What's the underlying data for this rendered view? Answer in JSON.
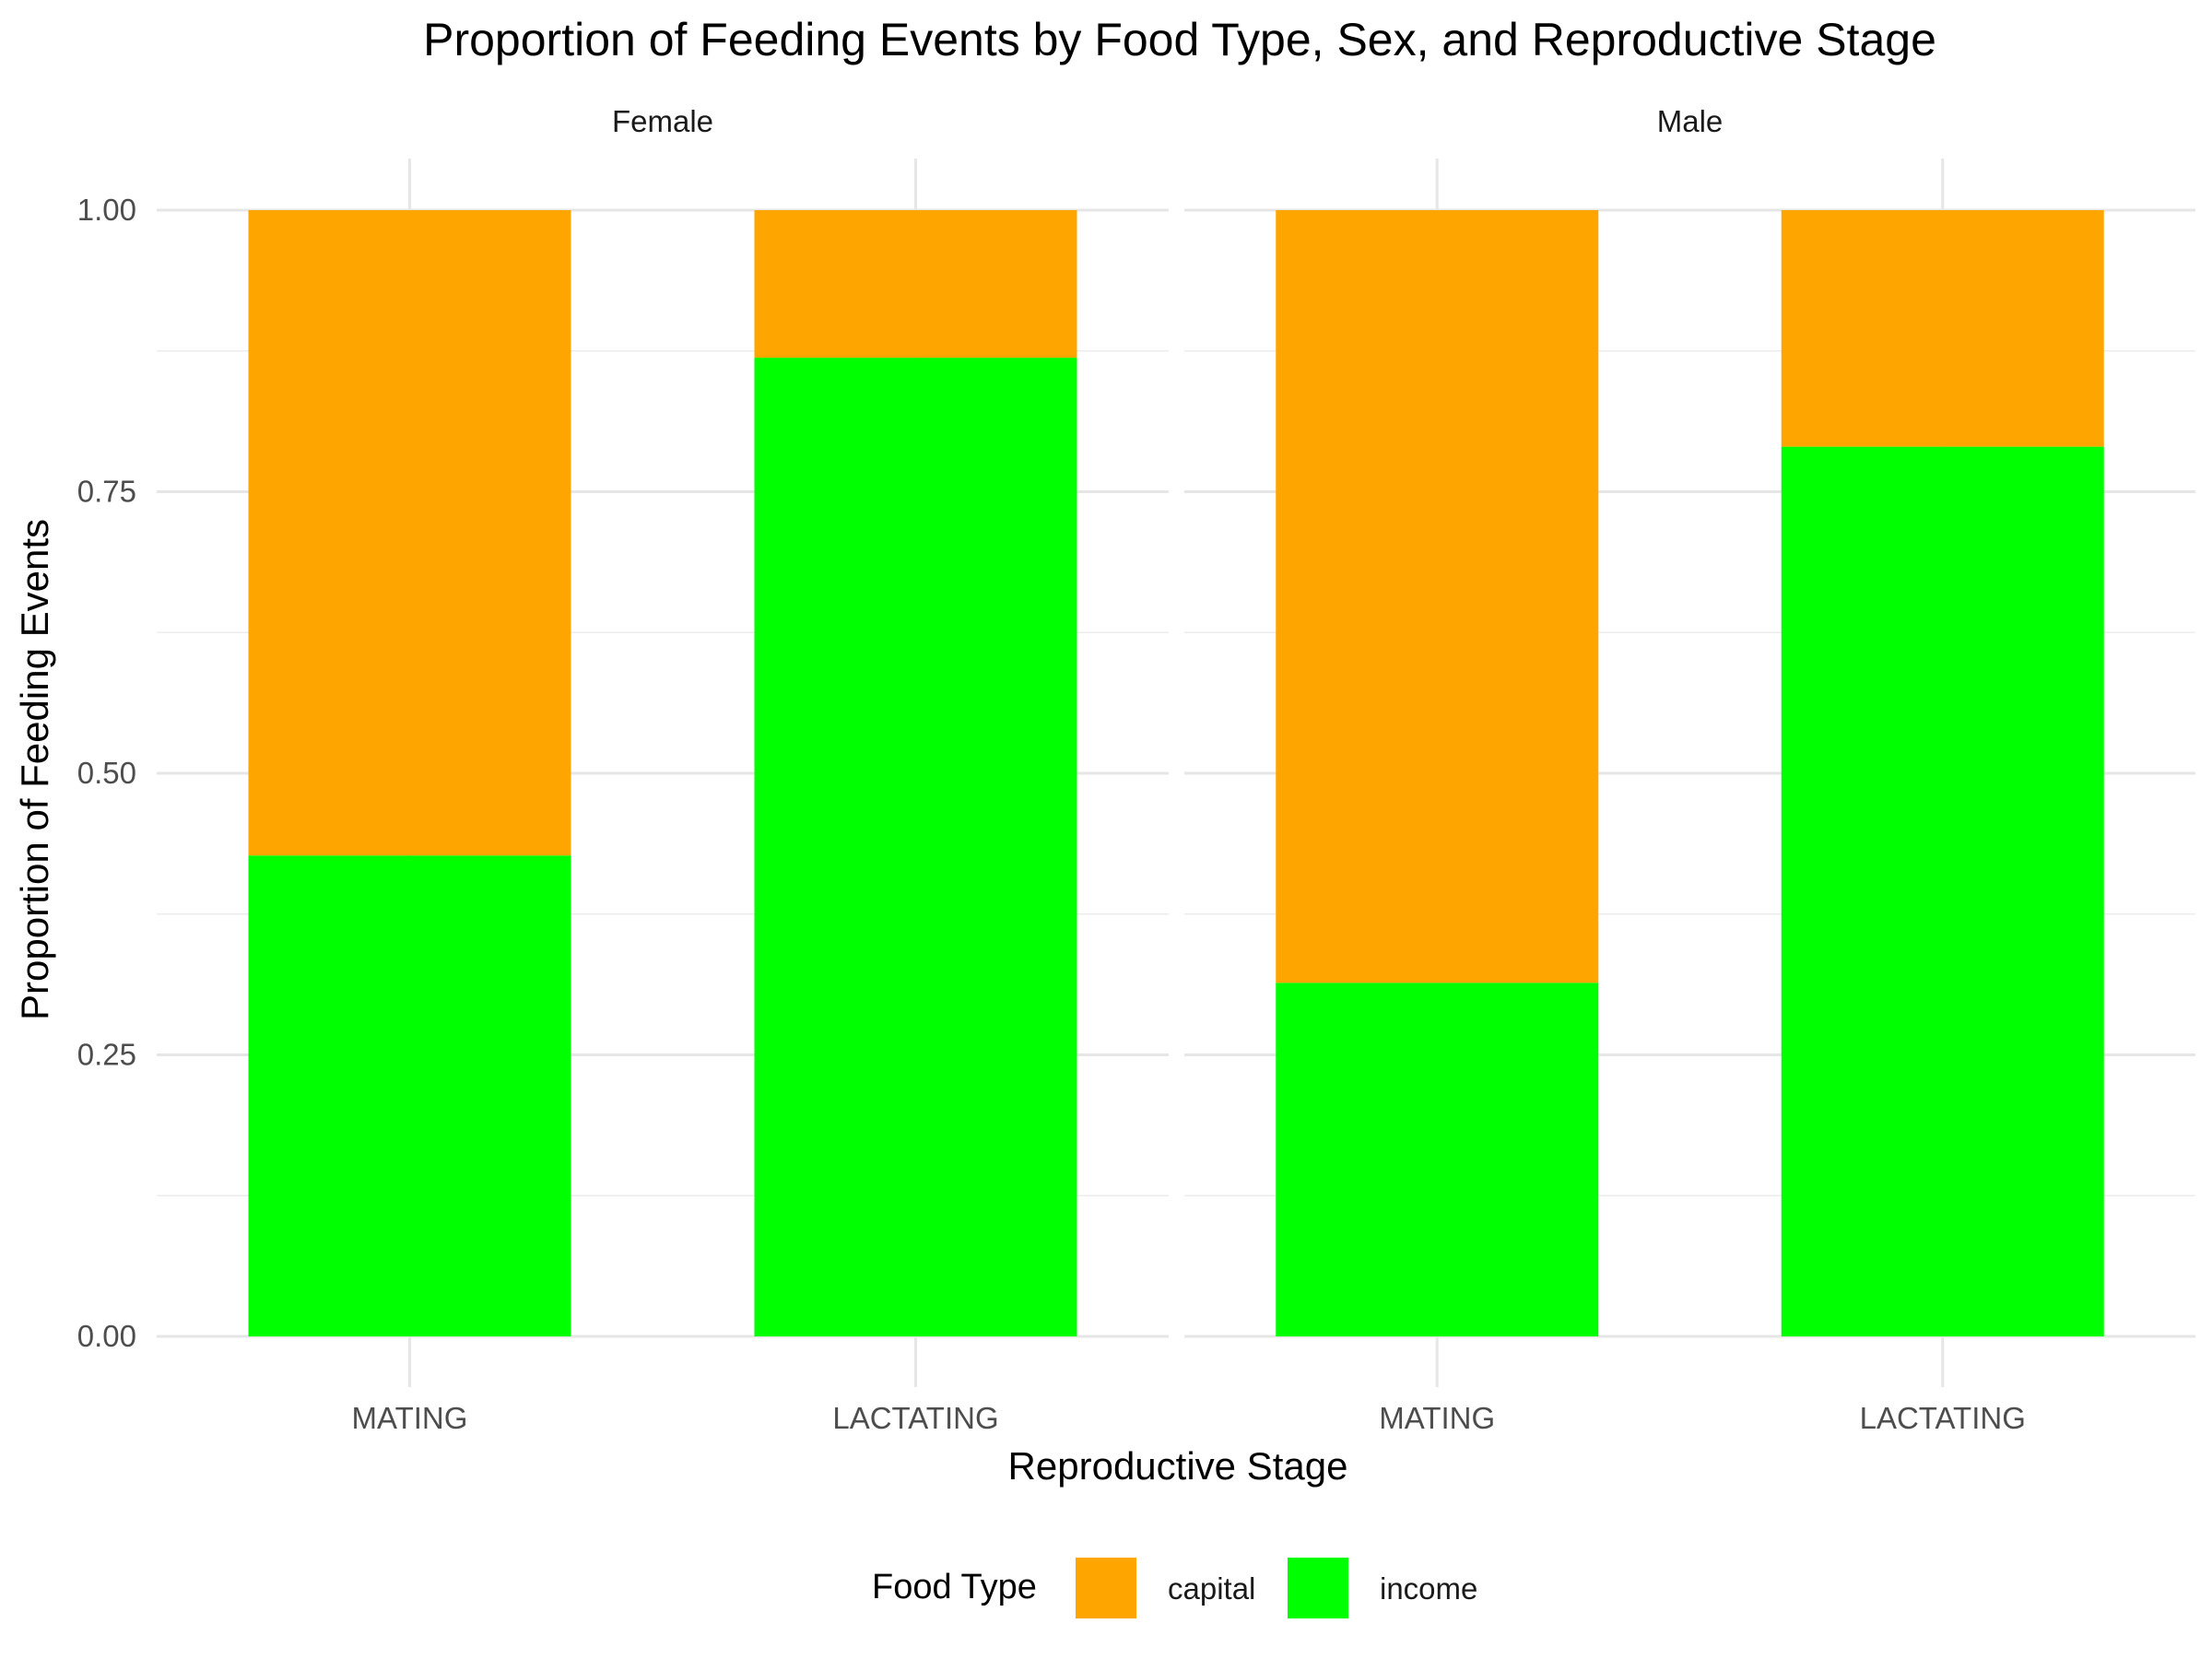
{
  "chart_data": {
    "type": "bar",
    "stacked": true,
    "title": "Proportion of Feeding Events by Food Type, Sex, and Reproductive Stage",
    "xlabel": "Reproductive Stage",
    "ylabel": "Proportion of Feeding Events",
    "ylim": [
      0,
      1
    ],
    "yticks": [
      "0.00",
      "0.25",
      "0.50",
      "0.75",
      "1.00"
    ],
    "grid": true,
    "categories": [
      "MATING",
      "LACTATING"
    ],
    "panels": [
      {
        "name": "Female",
        "series": [
          {
            "name": "income",
            "values": [
              0.427,
              0.869
            ]
          },
          {
            "name": "capital",
            "values": [
              0.573,
              0.131
            ]
          }
        ]
      },
      {
        "name": "Male",
        "series": [
          {
            "name": "income",
            "values": [
              0.314,
              0.79
            ]
          },
          {
            "name": "capital",
            "values": [
              0.686,
              0.21
            ]
          }
        ]
      }
    ],
    "legend": {
      "title": "Food Type",
      "position": "bottom",
      "items": [
        {
          "name": "capital",
          "color": "#FFA500"
        },
        {
          "name": "income",
          "color": "#00FF00"
        }
      ]
    },
    "colors": {
      "capital": "#FFA500",
      "income": "#00FF00"
    }
  }
}
